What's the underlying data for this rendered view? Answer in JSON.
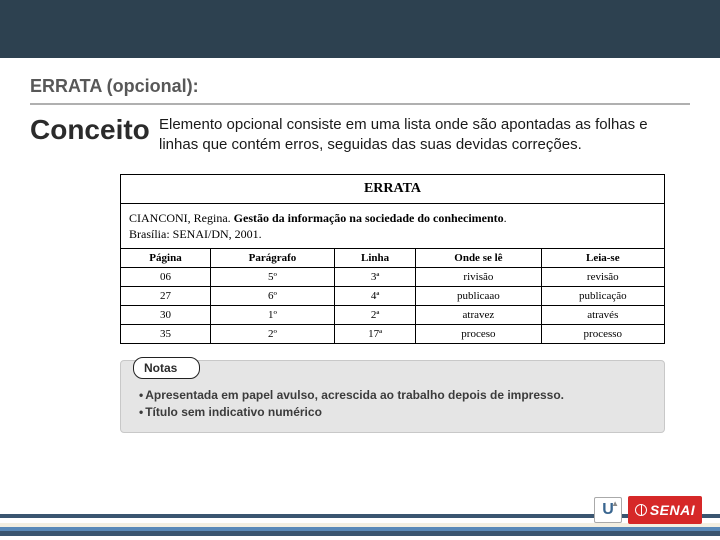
{
  "section_title": "ERRATA (opcional):",
  "concept_label": "Conceito",
  "concept_text": "Elemento opcional consiste em uma lista onde são apontadas as folhas e linhas que contém erros, seguidas das suas devidas correções.",
  "errata": {
    "title": "ERRATA",
    "author": "CIANCONI, Regina.",
    "work_title": "Gestão da informação na sociedade do conhecimento",
    "publication": "Brasília: SENAI/DN, 2001.",
    "columns": [
      "Página",
      "Parágrafo",
      "Linha",
      "Onde se lê",
      "Leia-se"
    ],
    "rows": [
      [
        "06",
        "5º",
        "3ª",
        "rivisão",
        "revisão"
      ],
      [
        "27",
        "6º",
        "4ª",
        "publicaao",
        "publicação"
      ],
      [
        "30",
        "1º",
        "2ª",
        "atravez",
        "através"
      ],
      [
        "35",
        "2º",
        "17ª",
        "proceso",
        "processo"
      ]
    ]
  },
  "notes": {
    "label": "Notas",
    "items": [
      "Apresentada em papel avulso, acrescida ao trabalho depois de impresso.",
      "Título sem indicativo numérico"
    ]
  },
  "logos": {
    "u": "U",
    "senai": "SENAI"
  },
  "colors": {
    "banner": "#2d4150",
    "senai_red": "#d62828"
  }
}
